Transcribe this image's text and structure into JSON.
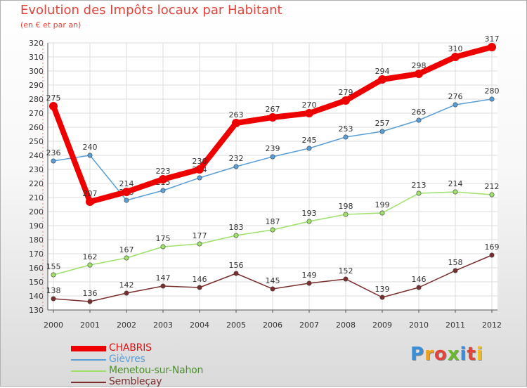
{
  "header": {
    "title": "Evolution des Impôts locaux par Habitant",
    "subtitle": "(en € et par an)"
  },
  "brand": {
    "text": "Proxiti",
    "letter_colors": [
      "#3a8ed8",
      "#f0a020",
      "#e0443a",
      "#6ab82e",
      "#3a8ed8",
      "#e0443a",
      "#f0c020"
    ]
  },
  "chart_data": {
    "type": "line",
    "title": "Evolution des Impôts locaux par Habitant",
    "subtitle": "(en € et par an)",
    "xlabel": "",
    "ylabel": "",
    "x": [
      "2000",
      "2001",
      "2002",
      "2003",
      "2004",
      "2005",
      "2006",
      "2007",
      "2008",
      "2009",
      "2010",
      "2011",
      "2012"
    ],
    "ylim": [
      130,
      320
    ],
    "yticks": [
      130,
      140,
      150,
      160,
      170,
      180,
      190,
      200,
      210,
      220,
      230,
      240,
      250,
      260,
      270,
      280,
      290,
      300,
      310,
      320
    ],
    "grid": true,
    "legend_position": "bottom-left",
    "series": [
      {
        "name": "Sembleçay",
        "color": "#7a2e2e",
        "emphasis": false,
        "values": [
          138,
          136,
          142,
          147,
          146,
          156,
          145,
          149,
          152,
          139,
          146,
          158,
          169
        ]
      },
      {
        "name": "Menetou-sur-Nahon",
        "color": "#9ee06a",
        "emphasis": false,
        "values": [
          155,
          162,
          167,
          175,
          177,
          183,
          187,
          193,
          198,
          199,
          213,
          214,
          212
        ]
      },
      {
        "name": "Gièvres",
        "color": "#5a9ed8",
        "emphasis": false,
        "values": [
          236,
          240,
          208,
          215,
          224,
          232,
          239,
          245,
          253,
          257,
          265,
          276,
          280
        ]
      },
      {
        "name": "CHABRIS",
        "color": "#ee0000",
        "emphasis": true,
        "values": [
          275,
          207,
          214,
          223,
          230,
          263,
          267,
          270,
          279,
          294,
          298,
          310,
          317
        ]
      }
    ],
    "legend_order": [
      "CHABRIS",
      "Gièvres",
      "Menetou-sur-Nahon",
      "Sembleçay"
    ]
  }
}
